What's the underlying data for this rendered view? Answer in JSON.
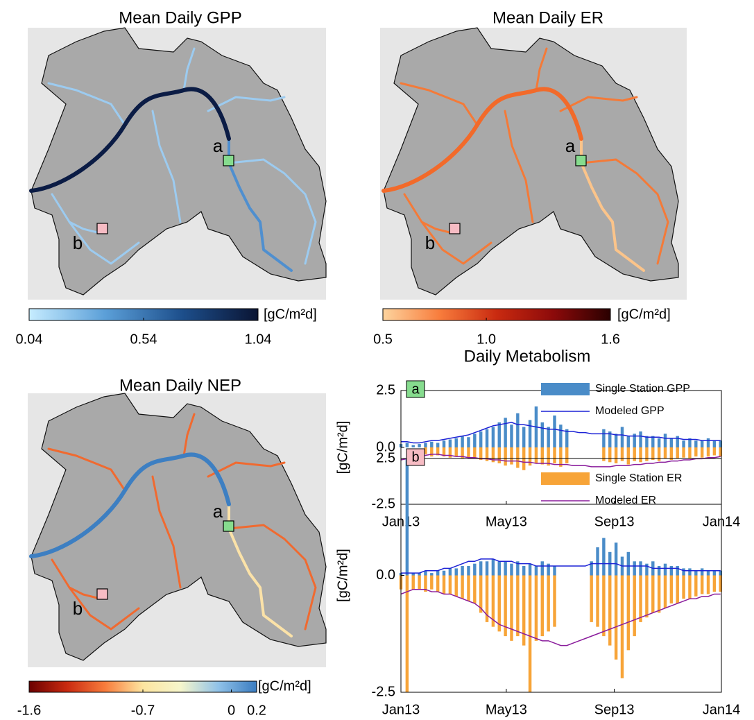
{
  "chart_data": [
    {
      "type": "map",
      "title": "Mean Daily GPP",
      "sites": [
        "a",
        "b"
      ],
      "site_colors": [
        "#86dc8e",
        "#f7bcc4"
      ],
      "colorbar": {
        "label": "[gC/m²d]",
        "colors": [
          "#c6ecff",
          "#5b9fd8",
          "#1d4f8c",
          "#0a1433"
        ],
        "lim": [
          0.04,
          1.04
        ],
        "ticks": [
          0.04,
          0.54,
          1.04
        ]
      }
    },
    {
      "type": "map",
      "title": "Mean Daily ER",
      "sites": [
        "a",
        "b"
      ],
      "site_colors": [
        "#86dc8e",
        "#f7bcc4"
      ],
      "colorbar": {
        "label": "[gC/m²d]",
        "colors": [
          "#fdd49e",
          "#f87c3c",
          "#c92a10",
          "#8c0a0a",
          "#2a0000"
        ],
        "lim": [
          0.5,
          1.6
        ],
        "ticks": [
          0.5,
          {
            "value": 1,
            "label": "1.0"
          },
          1.6
        ]
      }
    },
    {
      "type": "map",
      "title": "Mean Daily NEP",
      "sites": [
        "a",
        "b"
      ],
      "site_colors": [
        "#86dc8e",
        "#f7bcc4"
      ],
      "colorbar": {
        "label": "[gC/m²d]",
        "colors": [
          "#6b0000",
          "#c92a10",
          "#f87c3c",
          "#fde5a0",
          "#f6f6cc",
          "#8fc1e8",
          "#3a7cc0"
        ],
        "lim": [
          -1.6,
          0.2
        ],
        "ticks": [
          -1.6,
          -0.7,
          0,
          0.2
        ]
      }
    },
    {
      "type": "bar-line",
      "title": "Daily Metabolism",
      "panel": "a",
      "panel_color": "#86dc8e",
      "ylabel": "[gC/m²d]",
      "xlim": [
        0,
        365
      ],
      "xticks": [
        {
          "value": 0,
          "label": "Jan13"
        },
        {
          "value": 120,
          "label": "May13"
        },
        {
          "value": 243,
          "label": "Sep13"
        },
        {
          "value": 365,
          "label": "Jan14"
        }
      ],
      "ylim": [
        -2.5,
        2.5
      ],
      "yticks": [
        -2.5,
        {
          "value": 0,
          "label": "0.0"
        },
        2.5
      ],
      "x": [
        0,
        7,
        14,
        21,
        28,
        35,
        42,
        49,
        56,
        63,
        70,
        77,
        84,
        91,
        98,
        105,
        112,
        119,
        126,
        133,
        140,
        147,
        154,
        161,
        168,
        175,
        182,
        189,
        196,
        203,
        210,
        217,
        224,
        231,
        238,
        245,
        252,
        259,
        266,
        273,
        280,
        287,
        294,
        301,
        308,
        315,
        322,
        329,
        336,
        343,
        350,
        357,
        364
      ],
      "series": [
        {
          "name": "Single Station GPP",
          "kind": "bar",
          "color": "#4a8cc8",
          "legend": true,
          "values": [
            0.15,
            0.2,
            0.1,
            0.15,
            0.2,
            0.25,
            0.2,
            0.3,
            0.35,
            0.4,
            0.5,
            0.45,
            0.6,
            0.7,
            0.8,
            0.9,
            1.1,
            1.3,
            1.0,
            1.5,
            0.9,
            1.2,
            1.8,
            1.1,
            0.9,
            1.4,
            1.0,
            0.8,
            null,
            null,
            null,
            null,
            null,
            0.8,
            0.7,
            0.6,
            0.9,
            0.5,
            0.6,
            0.7,
            0.5,
            0.5,
            0.4,
            0.6,
            0.4,
            0.5,
            0.3,
            0.4,
            0.3,
            0.3,
            0.4,
            0.3,
            0.3
          ]
        },
        {
          "name": "Modeled GPP",
          "kind": "line",
          "color": "#1c22d6",
          "legend": true,
          "values": [
            0.25,
            0.25,
            0.2,
            0.2,
            0.25,
            0.3,
            0.3,
            0.35,
            0.4,
            0.45,
            0.5,
            0.55,
            0.65,
            0.75,
            0.85,
            0.95,
            1.0,
            1.05,
            1.1,
            1.0,
            1.0,
            0.95,
            0.9,
            0.85,
            0.8,
            0.8,
            0.75,
            0.7,
            0.7,
            0.65,
            0.65,
            0.6,
            0.6,
            0.6,
            0.6,
            0.55,
            0.55,
            0.5,
            0.5,
            0.5,
            0.45,
            0.45,
            0.45,
            0.4,
            0.4,
            0.4,
            0.35,
            0.35,
            0.35,
            0.3,
            0.3,
            0.3,
            0.3
          ]
        },
        {
          "name": "Single Station ER",
          "kind": "bar",
          "color": "#f7a438",
          "legend": false,
          "values": [
            null,
            null,
            null,
            null,
            -0.3,
            -0.4,
            -0.35,
            -0.4,
            -0.45,
            -0.4,
            -0.5,
            -0.45,
            -0.5,
            -0.55,
            -0.6,
            -0.65,
            -0.7,
            -0.8,
            -0.75,
            -0.9,
            -1.0,
            -0.8,
            -0.7,
            -0.75,
            -0.8,
            -0.7,
            -0.85,
            -0.7,
            null,
            null,
            null,
            null,
            null,
            -0.6,
            -0.65,
            -0.7,
            -0.6,
            -0.75,
            -0.6,
            -0.65,
            -0.6,
            -0.55,
            -0.6,
            -0.5,
            -0.55,
            -0.5,
            -0.45,
            -0.5,
            -0.4,
            -0.45,
            -0.4,
            -0.35,
            -0.4
          ]
        },
        {
          "name": "Modeled ER",
          "kind": "line",
          "color": "#8a1c9c",
          "legend": false,
          "values": [
            -0.55,
            -0.5,
            -0.45,
            -0.4,
            -0.35,
            -0.3,
            -0.3,
            -0.35,
            -0.35,
            -0.4,
            -0.4,
            -0.45,
            -0.45,
            -0.5,
            -0.5,
            -0.55,
            -0.55,
            -0.6,
            -0.6,
            -0.6,
            -0.65,
            -0.65,
            -0.7,
            -0.7,
            -0.7,
            -0.75,
            -0.75,
            -0.75,
            -0.8,
            -0.8,
            -0.8,
            -0.85,
            -0.85,
            -0.85,
            -0.85,
            -0.8,
            -0.8,
            -0.8,
            -0.75,
            -0.75,
            -0.7,
            -0.7,
            -0.65,
            -0.65,
            -0.6,
            -0.6,
            -0.55,
            -0.55,
            -0.5,
            -0.5,
            -0.45,
            -0.45,
            -0.4
          ]
        }
      ]
    },
    {
      "type": "bar-line",
      "panel": "b",
      "panel_color": "#f7bcc4",
      "ylabel": "[gC/m²d]",
      "xlim": [
        0,
        365
      ],
      "xticks": [
        {
          "value": 0,
          "label": "Jan13"
        },
        {
          "value": 120,
          "label": "May13"
        },
        {
          "value": 243,
          "label": "Sep13"
        },
        {
          "value": 365,
          "label": "Jan14"
        }
      ],
      "ylim": [
        -2.5,
        2.5
      ],
      "yticks": [
        -2.5,
        {
          "value": 0,
          "label": "0.0"
        },
        2.5
      ],
      "x": [
        0,
        7,
        14,
        21,
        28,
        35,
        42,
        49,
        56,
        63,
        70,
        77,
        84,
        91,
        98,
        105,
        112,
        119,
        126,
        133,
        140,
        147,
        154,
        161,
        168,
        175,
        182,
        189,
        196,
        203,
        210,
        217,
        224,
        231,
        238,
        245,
        252,
        259,
        266,
        273,
        280,
        287,
        294,
        301,
        308,
        315,
        322,
        329,
        336,
        343,
        350,
        357,
        364
      ],
      "series": [
        {
          "name": "Single Station GPP",
          "kind": "bar",
          "color": "#4a8cc8",
          "legend": false,
          "values": [
            0.05,
            2.5,
            0.05,
            0.05,
            0.1,
            0.05,
            0.1,
            0.1,
            0.15,
            0.15,
            0.2,
            0.2,
            0.25,
            0.3,
            0.3,
            0.35,
            0.3,
            0.3,
            0.25,
            0.3,
            0.2,
            0.25,
            0.2,
            0.3,
            0.25,
            0.2,
            null,
            null,
            null,
            null,
            null,
            0.3,
            0.6,
            0.8,
            0.5,
            0.7,
            0.4,
            0.5,
            0.3,
            0.3,
            0.25,
            0.3,
            0.2,
            0.25,
            0.2,
            0.2,
            0.15,
            0.15,
            0.1,
            0.15,
            0.1,
            0.1,
            0.1
          ]
        },
        {
          "name": "Modeled GPP",
          "kind": "line",
          "color": "#1c22d6",
          "legend": false,
          "values": [
            0.05,
            0.05,
            0.05,
            0.05,
            0.1,
            0.1,
            0.1,
            0.15,
            0.15,
            0.2,
            0.25,
            0.3,
            0.3,
            0.35,
            0.35,
            0.35,
            0.3,
            0.3,
            0.3,
            0.25,
            0.25,
            0.25,
            0.2,
            0.2,
            0.2,
            0.2,
            0.2,
            0.2,
            0.2,
            0.2,
            0.2,
            0.25,
            0.25,
            0.25,
            0.25,
            0.25,
            0.2,
            0.2,
            0.2,
            0.2,
            0.2,
            0.15,
            0.15,
            0.15,
            0.15,
            0.15,
            0.1,
            0.1,
            0.1,
            0.1,
            0.1,
            0.1,
            0.1
          ]
        },
        {
          "name": "Single Station ER",
          "kind": "bar",
          "color": "#f7a438",
          "legend": true,
          "values": [
            -0.3,
            -2.5,
            -0.3,
            -0.3,
            -0.35,
            -0.3,
            -0.35,
            -0.4,
            -0.4,
            -0.45,
            -0.5,
            -0.55,
            -0.6,
            -0.8,
            -1.0,
            -1.1,
            -1.2,
            -1.3,
            -1.4,
            -1.3,
            -1.5,
            -2.5,
            -1.4,
            -1.3,
            -1.2,
            -1.1,
            null,
            null,
            null,
            null,
            null,
            -1.0,
            -1.1,
            -1.3,
            -1.5,
            -1.8,
            -2.2,
            -1.6,
            -1.3,
            -1.0,
            -0.9,
            -0.8,
            -0.8,
            -0.7,
            -0.6,
            -0.6,
            -0.5,
            -0.5,
            -0.45,
            -0.4,
            -0.4,
            -0.35,
            -0.35
          ]
        },
        {
          "name": "Modeled ER",
          "kind": "line",
          "color": "#8a1c9c",
          "legend": true,
          "values": [
            -0.4,
            -0.35,
            -0.3,
            -0.3,
            -0.3,
            -0.35,
            -0.35,
            -0.4,
            -0.4,
            -0.45,
            -0.5,
            -0.55,
            -0.6,
            -0.7,
            -0.85,
            -0.95,
            -1.05,
            -1.1,
            -1.15,
            -1.2,
            -1.25,
            -1.3,
            -1.35,
            -1.4,
            -1.4,
            -1.45,
            -1.5,
            -1.5,
            -1.45,
            -1.4,
            -1.35,
            -1.3,
            -1.25,
            -1.2,
            -1.15,
            -1.1,
            -1.05,
            -1.0,
            -0.95,
            -0.9,
            -0.85,
            -0.8,
            -0.75,
            -0.7,
            -0.65,
            -0.6,
            -0.55,
            -0.5,
            -0.5,
            -0.45,
            -0.45,
            -0.4,
            -0.4
          ]
        }
      ]
    }
  ]
}
